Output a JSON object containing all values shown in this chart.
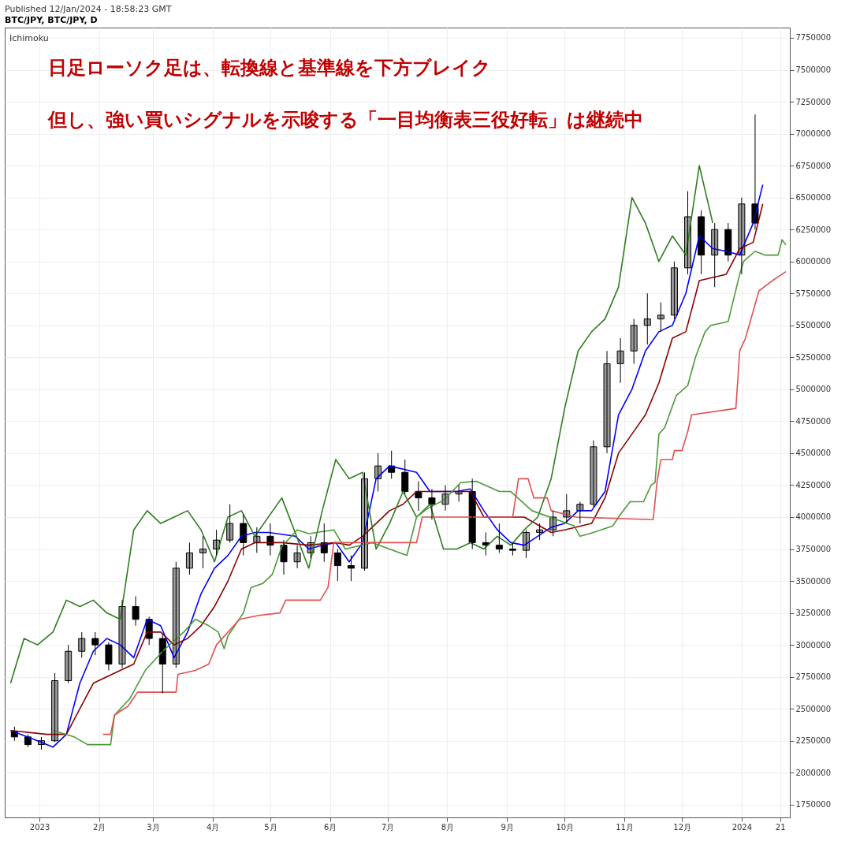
{
  "chart_data": {
    "type": "candlestick",
    "title": "Published 12/Jan/2024 - 18:58:23 GMT",
    "subtitle": "BTC/JPY, BTC/JPY, D",
    "annotations": [
      "Ichimoku",
      "日足ローソク足は、転換線と基準線を下方ブレイク",
      "但し、強い買いシグナルを示唆する「一目均衡表三役好転」は継続中"
    ],
    "x": [
      "2022-12-19",
      "2022-12-26",
      "2023-01-02",
      "2023-01-09",
      "2023-01-16",
      "2023-01-23",
      "2023-01-30",
      "2023-02-06",
      "2023-02-13",
      "2023-02-20",
      "2023-02-27",
      "2023-03-06",
      "2023-03-13",
      "2023-03-20",
      "2023-03-27",
      "2023-04-03",
      "2023-04-10",
      "2023-04-17",
      "2023-04-24",
      "2023-05-01",
      "2023-05-08",
      "2023-05-15",
      "2023-05-22",
      "2023-05-29",
      "2023-06-05",
      "2023-06-12",
      "2023-06-19",
      "2023-06-26",
      "2023-07-03",
      "2023-07-10",
      "2023-07-17",
      "2023-07-24",
      "2023-07-31",
      "2023-08-07",
      "2023-08-14",
      "2023-08-21",
      "2023-08-28",
      "2023-09-04",
      "2023-09-11",
      "2023-09-18",
      "2023-09-25",
      "2023-10-02",
      "2023-10-09",
      "2023-10-16",
      "2023-10-23",
      "2023-10-30",
      "2023-11-06",
      "2023-11-13",
      "2023-11-20",
      "2023-11-27",
      "2023-12-04",
      "2023-12-11",
      "2023-12-18",
      "2023-12-25",
      "2024-01-01",
      "2024-01-08"
    ],
    "ohlc": [
      [
        2320000,
        2360000,
        2250000,
        2280000
      ],
      [
        2280000,
        2300000,
        2200000,
        2220000
      ],
      [
        2220000,
        2280000,
        2180000,
        2250000
      ],
      [
        2250000,
        2780000,
        2240000,
        2720000
      ],
      [
        2720000,
        3000000,
        2700000,
        2950000
      ],
      [
        2950000,
        3100000,
        2900000,
        3050000
      ],
      [
        3050000,
        3100000,
        2920000,
        3000000
      ],
      [
        3000000,
        3020000,
        2800000,
        2850000
      ],
      [
        2850000,
        3350000,
        2820000,
        3300000
      ],
      [
        3300000,
        3380000,
        3150000,
        3200000
      ],
      [
        3200000,
        3220000,
        3000000,
        3050000
      ],
      [
        3050000,
        3080000,
        2620000,
        2850000
      ],
      [
        2850000,
        3650000,
        2820000,
        3600000
      ],
      [
        3600000,
        3800000,
        3550000,
        3720000
      ],
      [
        3720000,
        3850000,
        3600000,
        3750000
      ],
      [
        3750000,
        3900000,
        3700000,
        3820000
      ],
      [
        3820000,
        4100000,
        3800000,
        3950000
      ],
      [
        3950000,
        4020000,
        3700000,
        3800000
      ],
      [
        3800000,
        3920000,
        3720000,
        3850000
      ],
      [
        3850000,
        3950000,
        3700000,
        3780000
      ],
      [
        3780000,
        3820000,
        3550000,
        3650000
      ],
      [
        3650000,
        3780000,
        3600000,
        3720000
      ],
      [
        3720000,
        3850000,
        3680000,
        3800000
      ],
      [
        3800000,
        3950000,
        3650000,
        3720000
      ],
      [
        3720000,
        3750000,
        3500000,
        3620000
      ],
      [
        3620000,
        3700000,
        3500000,
        3600000
      ],
      [
        3600000,
        4350000,
        3580000,
        4300000
      ],
      [
        4300000,
        4500000,
        4200000,
        4400000
      ],
      [
        4400000,
        4520000,
        4300000,
        4350000
      ],
      [
        4350000,
        4450000,
        4180000,
        4200000
      ],
      [
        4200000,
        4280000,
        4050000,
        4150000
      ],
      [
        4150000,
        4220000,
        3980000,
        4100000
      ],
      [
        4100000,
        4250000,
        4050000,
        4180000
      ],
      [
        4180000,
        4250000,
        4120000,
        4200000
      ],
      [
        4200000,
        4300000,
        3750000,
        3800000
      ],
      [
        3800000,
        3880000,
        3700000,
        3780000
      ],
      [
        3780000,
        3950000,
        3720000,
        3750000
      ],
      [
        3750000,
        3800000,
        3700000,
        3740000
      ],
      [
        3740000,
        3900000,
        3680000,
        3880000
      ],
      [
        3880000,
        3950000,
        3820000,
        3900000
      ],
      [
        3900000,
        4050000,
        3850000,
        4000000
      ],
      [
        4000000,
        4180000,
        3950000,
        4050000
      ],
      [
        4050000,
        4120000,
        3950000,
        4100000
      ],
      [
        4100000,
        4600000,
        4080000,
        4550000
      ],
      [
        4550000,
        5300000,
        4500000,
        5200000
      ],
      [
        5200000,
        5400000,
        5050000,
        5300000
      ],
      [
        5300000,
        5550000,
        5200000,
        5500000
      ],
      [
        5500000,
        5750000,
        5350000,
        5550000
      ],
      [
        5550000,
        5680000,
        5450000,
        5580000
      ],
      [
        5580000,
        6000000,
        5550000,
        5950000
      ],
      [
        5950000,
        6550000,
        5900000,
        6350000
      ],
      [
        6350000,
        6400000,
        5900000,
        6050000
      ],
      [
        6050000,
        6300000,
        5800000,
        6250000
      ],
      [
        6250000,
        6300000,
        6000000,
        6050000
      ],
      [
        6050000,
        6500000,
        5900000,
        6450000
      ],
      [
        6450000,
        7150000,
        6250000,
        6300000
      ]
    ],
    "series": [
      {
        "type": "line",
        "color": "#0000ff",
        "x": [
          "2022-12-17",
          "2022-12-31",
          "2023-01-08",
          "2023-01-15",
          "2023-01-22",
          "2023-01-29",
          "2023-02-05",
          "2023-02-12",
          "2023-02-19",
          "2023-02-26",
          "2023-03-05",
          "2023-03-12",
          "2023-03-19",
          "2023-03-26",
          "2023-04-02",
          "2023-04-09",
          "2023-04-16",
          "2023-04-23",
          "2023-04-30",
          "2023-05-14",
          "2023-05-21",
          "2023-05-28",
          "2023-06-04",
          "2023-06-11",
          "2023-06-18",
          "2023-06-25",
          "2023-07-02",
          "2023-07-16",
          "2023-07-23",
          "2023-08-06",
          "2023-08-13",
          "2023-08-20",
          "2023-08-27",
          "2023-09-03",
          "2023-09-10",
          "2023-09-17",
          "2023-09-24",
          "2023-10-01",
          "2023-10-08",
          "2023-10-15",
          "2023-10-22",
          "2023-10-29",
          "2023-11-05",
          "2023-11-12",
          "2023-11-19",
          "2023-11-26",
          "2023-12-03",
          "2023-12-10",
          "2023-12-17",
          "2023-12-24",
          "2023-12-31",
          "2024-01-07",
          "2024-01-12"
        ],
        "values": [
          2330000,
          2250000,
          2200000,
          2300000,
          2700000,
          2950000,
          3050000,
          3000000,
          2900000,
          3200000,
          3150000,
          2900000,
          3100000,
          3400000,
          3600000,
          3700000,
          3850000,
          3880000,
          3880000,
          3850000,
          3750000,
          3780000,
          3800000,
          3650000,
          3800000,
          4300000,
          4400000,
          4350000,
          4200000,
          4200000,
          4220000,
          4050000,
          3900000,
          3800000,
          3780000,
          3850000,
          3920000,
          3950000,
          4050000,
          4050000,
          4200000,
          4800000,
          5000000,
          5300000,
          5450000,
          5500000,
          5750000,
          6200000,
          6100000,
          6080000,
          6050000,
          6300000,
          6600000
        ]
      },
      {
        "type": "line",
        "color": "#8b0000",
        "x": [
          "2022-12-17",
          "2023-01-05",
          "2023-01-15",
          "2023-01-22",
          "2023-01-29",
          "2023-02-12",
          "2023-02-19",
          "2023-02-26",
          "2023-03-05",
          "2023-03-12",
          "2023-03-19",
          "2023-03-26",
          "2023-04-02",
          "2023-04-09",
          "2023-04-16",
          "2023-04-23",
          "2023-05-07",
          "2023-05-21",
          "2023-06-04",
          "2023-06-11",
          "2023-06-18",
          "2023-06-25",
          "2023-07-02",
          "2023-07-09",
          "2023-07-16",
          "2023-08-13",
          "2023-08-20",
          "2023-08-27",
          "2023-09-10",
          "2023-09-24",
          "2023-10-01",
          "2023-10-15",
          "2023-10-22",
          "2023-10-29",
          "2023-11-05",
          "2023-11-12",
          "2023-11-19",
          "2023-11-26",
          "2023-12-03",
          "2023-12-10",
          "2023-12-24",
          "2023-12-31",
          "2024-01-07",
          "2024-01-12"
        ],
        "values": [
          2330000,
          2300000,
          2300000,
          2500000,
          2700000,
          2800000,
          2850000,
          3100000,
          3100000,
          3000000,
          3050000,
          3150000,
          3300000,
          3500000,
          3750000,
          3800000,
          3800000,
          3780000,
          3800000,
          3780000,
          3850000,
          3950000,
          4050000,
          4100000,
          4200000,
          4200000,
          4000000,
          4000000,
          4000000,
          3880000,
          3900000,
          3950000,
          4150000,
          4500000,
          4650000,
          4800000,
          5050000,
          5400000,
          5450000,
          5850000,
          5900000,
          6100000,
          6150000,
          6450000
        ]
      },
      {
        "type": "line",
        "color": "#2e7d1e",
        "x": [
          "2022-12-17",
          "2022-12-24",
          "2022-12-31",
          "2023-01-08",
          "2023-01-15",
          "2023-01-22",
          "2023-01-29",
          "2023-02-05",
          "2023-02-12",
          "2023-02-19",
          "2023-02-26",
          "2023-03-05",
          "2023-03-12",
          "2023-03-19",
          "2023-03-26",
          "2023-04-02",
          "2023-04-09",
          "2023-04-16",
          "2023-04-23",
          "2023-05-07",
          "2023-05-21",
          "2023-05-28",
          "2023-06-04",
          "2023-06-11",
          "2023-06-18",
          "2023-06-25",
          "2023-07-02",
          "2023-07-09",
          "2023-07-16",
          "2023-07-23",
          "2023-07-30",
          "2023-08-06",
          "2023-08-13",
          "2023-08-20",
          "2023-08-27",
          "2023-09-03",
          "2023-09-10",
          "2023-09-17",
          "2023-09-24",
          "2023-10-01",
          "2023-10-08",
          "2023-10-15",
          "2023-10-22",
          "2023-10-29",
          "2023-11-05",
          "2023-11-12",
          "2023-11-19",
          "2023-11-26",
          "2023-12-03",
          "2023-12-10",
          "2023-12-17"
        ],
        "values": [
          2700000,
          3050000,
          3000000,
          3100000,
          3350000,
          3300000,
          3350000,
          3250000,
          3200000,
          3900000,
          4050000,
          3950000,
          4000000,
          4050000,
          3900000,
          3650000,
          4000000,
          4050000,
          3850000,
          4150000,
          3600000,
          4050000,
          4450000,
          4300000,
          4350000,
          3750000,
          3950000,
          4200000,
          4000000,
          4100000,
          3750000,
          3750000,
          3800000,
          3750000,
          3850000,
          3780000,
          3900000,
          4000000,
          4300000,
          4850000,
          5300000,
          5450000,
          5550000,
          5800000,
          6500000,
          6300000,
          6000000,
          6200000,
          6050000,
          6750000,
          6300000
        ]
      },
      {
        "type": "line",
        "color": "#4a9a3a",
        "x": [
          "2023-01-08",
          "2023-01-19",
          "2023-01-26",
          "2023-02-07",
          "2023-02-09",
          "2023-02-17",
          "2023-02-25",
          "2023-03-06",
          "2023-03-17",
          "2023-03-23",
          "2023-03-30",
          "2023-04-04",
          "2023-04-07",
          "2023-04-09",
          "2023-04-17",
          "2023-04-21",
          "2023-04-27",
          "2023-05-02",
          "2023-05-07",
          "2023-05-15",
          "2023-05-21",
          "2023-06-03",
          "2023-06-09",
          "2023-06-23",
          "2023-07-11",
          "2023-07-16",
          "2023-07-22",
          "2023-07-30",
          "2023-08-08",
          "2023-08-16",
          "2023-08-28",
          "2023-09-03",
          "2023-09-14",
          "2023-10-06",
          "2023-10-09",
          "2023-10-14",
          "2023-10-26",
          "2023-10-29",
          "2023-11-04",
          "2023-11-11",
          "2023-11-15",
          "2023-11-17",
          "2023-11-19",
          "2023-11-22",
          "2023-11-28",
          "2023-12-04",
          "2023-12-08",
          "2023-12-13",
          "2023-12-16",
          "2023-12-25",
          "2023-12-31",
          "2024-01-02",
          "2024-01-08",
          "2024-01-13",
          "2024-01-20",
          "2024-01-22",
          "2024-01-24"
        ],
        "values": [
          2330000,
          2280000,
          2220000,
          2220000,
          2450000,
          2580000,
          2800000,
          2950000,
          3100000,
          3200000,
          3150000,
          3100000,
          2970000,
          3070000,
          3250000,
          3450000,
          3480000,
          3550000,
          3770000,
          3900000,
          3870000,
          3900000,
          3750000,
          3800000,
          3700000,
          4000000,
          4070000,
          4130000,
          4270000,
          4280000,
          4200000,
          4200000,
          4050000,
          3930000,
          3850000,
          3870000,
          3930000,
          4000000,
          4120000,
          4120000,
          4250000,
          4270000,
          4650000,
          4700000,
          4950000,
          5030000,
          5250000,
          5450000,
          5500000,
          5530000,
          5900000,
          6000000,
          6080000,
          6050000,
          6050000,
          6170000,
          6130000
        ]
      },
      {
        "type": "line",
        "color": "#e05050",
        "x": [
          "2023-02-03",
          "2023-02-07",
          "2023-02-09",
          "2023-02-16",
          "2023-02-21",
          "2023-03-13",
          "2023-03-14",
          "2023-03-23",
          "2023-03-30",
          "2023-04-03",
          "2023-04-09",
          "2023-04-15",
          "2023-04-25",
          "2023-05-06",
          "2023-05-09",
          "2023-05-27",
          "2023-05-31",
          "2023-06-03",
          "2023-07-16",
          "2023-07-19",
          "2023-09-04",
          "2023-09-07",
          "2023-09-12",
          "2023-09-15",
          "2023-09-22",
          "2023-09-24",
          "2023-10-07",
          "2023-11-16",
          "2023-11-18",
          "2023-11-20",
          "2023-11-26",
          "2023-11-27",
          "2023-12-01",
          "2023-12-04",
          "2023-12-06",
          "2023-12-29",
          "2023-12-31",
          "2024-01-03",
          "2024-01-10",
          "2024-01-17",
          "2024-01-22",
          "2024-01-24"
        ],
        "values": [
          2300000,
          2300000,
          2450000,
          2520000,
          2630000,
          2630000,
          2770000,
          2800000,
          2850000,
          3000000,
          3100000,
          3200000,
          3230000,
          3250000,
          3350000,
          3350000,
          3450000,
          3800000,
          3800000,
          4000000,
          4000000,
          4300000,
          4300000,
          4150000,
          4150000,
          4050000,
          4000000,
          3980000,
          4270000,
          4450000,
          4450000,
          4520000,
          4520000,
          4670000,
          4800000,
          4850000,
          5300000,
          5400000,
          5770000,
          5850000,
          5900000,
          5920000
        ]
      }
    ],
    "xlim": [
      "2022-12-16",
      "2024-01-24"
    ],
    "xticks": [
      {
        "value": "2023-01-01",
        "label": "2023"
      },
      {
        "value": "2023-02-01",
        "label": "2月"
      },
      {
        "value": "2023-03-01",
        "label": "3月"
      },
      {
        "value": "2023-04-01",
        "label": "4月"
      },
      {
        "value": "2023-05-01",
        "label": "5月"
      },
      {
        "value": "2023-06-01",
        "label": "6月"
      },
      {
        "value": "2023-07-01",
        "label": "7月"
      },
      {
        "value": "2023-08-01",
        "label": "8月"
      },
      {
        "value": "2023-09-01",
        "label": "9月"
      },
      {
        "value": "2023-10-01",
        "label": "10月"
      },
      {
        "value": "2023-11-01",
        "label": "11月"
      },
      {
        "value": "2023-12-01",
        "label": "12月"
      },
      {
        "value": "2024-01-01",
        "label": "2024"
      },
      {
        "value": "2024-01-21",
        "label": "21"
      }
    ],
    "ylim": [
      1650000,
      7830000
    ],
    "yticks": [
      1750000,
      2000000,
      2250000,
      2500000,
      2750000,
      3000000,
      3250000,
      3500000,
      3750000,
      4000000,
      4250000,
      4500000,
      4750000,
      5000000,
      5250000,
      5500000,
      5750000,
      6000000,
      6250000,
      6500000,
      6750000,
      7000000,
      7250000,
      7500000,
      7750000
    ],
    "grid": true
  }
}
